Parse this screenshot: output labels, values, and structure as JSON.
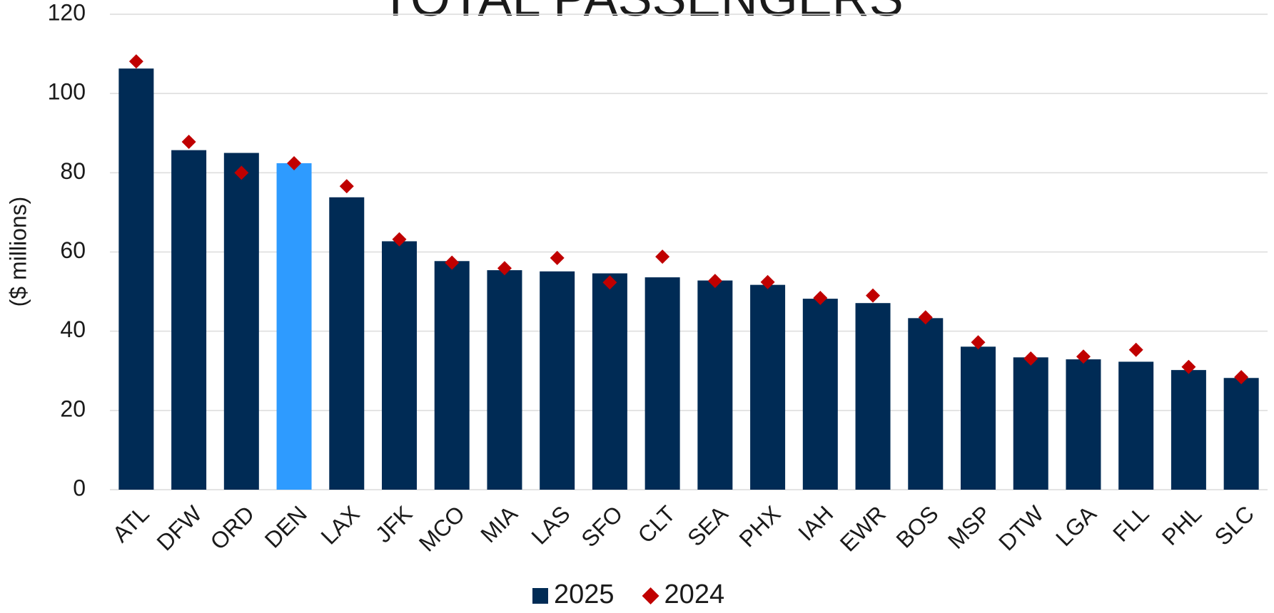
{
  "chart_data": {
    "type": "bar",
    "title": "TOTAL PASSENGERS",
    "y_label": "($ millions)",
    "categories": [
      "ATL",
      "DFW",
      "ORD",
      "DEN",
      "LAX",
      "JFK",
      "MCO",
      "MIA",
      "LAS",
      "SFO",
      "CLT",
      "SEA",
      "PHX",
      "IAH",
      "EWR",
      "BOS",
      "MSP",
      "DTW",
      "LGA",
      "FLL",
      "PHL",
      "SLC"
    ],
    "series": [
      {
        "name": "2025",
        "type": "bar",
        "color": "#002b55",
        "colors": [
          "#002b55",
          "#002b55",
          "#002b55",
          "#2e9bff",
          "#002b55",
          "#002b55",
          "#002b55",
          "#002b55",
          "#002b55",
          "#002b55",
          "#002b55",
          "#002b55",
          "#002b55",
          "#002b55",
          "#002b55",
          "#002b55",
          "#002b55",
          "#002b55",
          "#002b55",
          "#002b55",
          "#002b55",
          "#002b55"
        ],
        "values": [
          106.3,
          85.7,
          85.0,
          82.4,
          73.8,
          62.7,
          57.7,
          55.4,
          55.1,
          54.6,
          53.6,
          52.8,
          51.7,
          48.2,
          47.1,
          43.3,
          36.1,
          33.4,
          32.9,
          32.3,
          30.2,
          28.2
        ]
      },
      {
        "name": "2024",
        "type": "diamond",
        "color": "#c00000",
        "values": [
          108.1,
          87.8,
          80.0,
          82.4,
          76.6,
          63.2,
          57.3,
          55.9,
          58.5,
          52.3,
          58.8,
          52.7,
          52.4,
          48.4,
          49.0,
          43.5,
          37.2,
          33.1,
          33.6,
          35.3,
          31.0,
          28.4
        ]
      }
    ],
    "ylim": [
      0,
      120
    ],
    "yticks": [
      0,
      20,
      40,
      60,
      80,
      100,
      120
    ],
    "grid": true,
    "legend": "bottom"
  }
}
